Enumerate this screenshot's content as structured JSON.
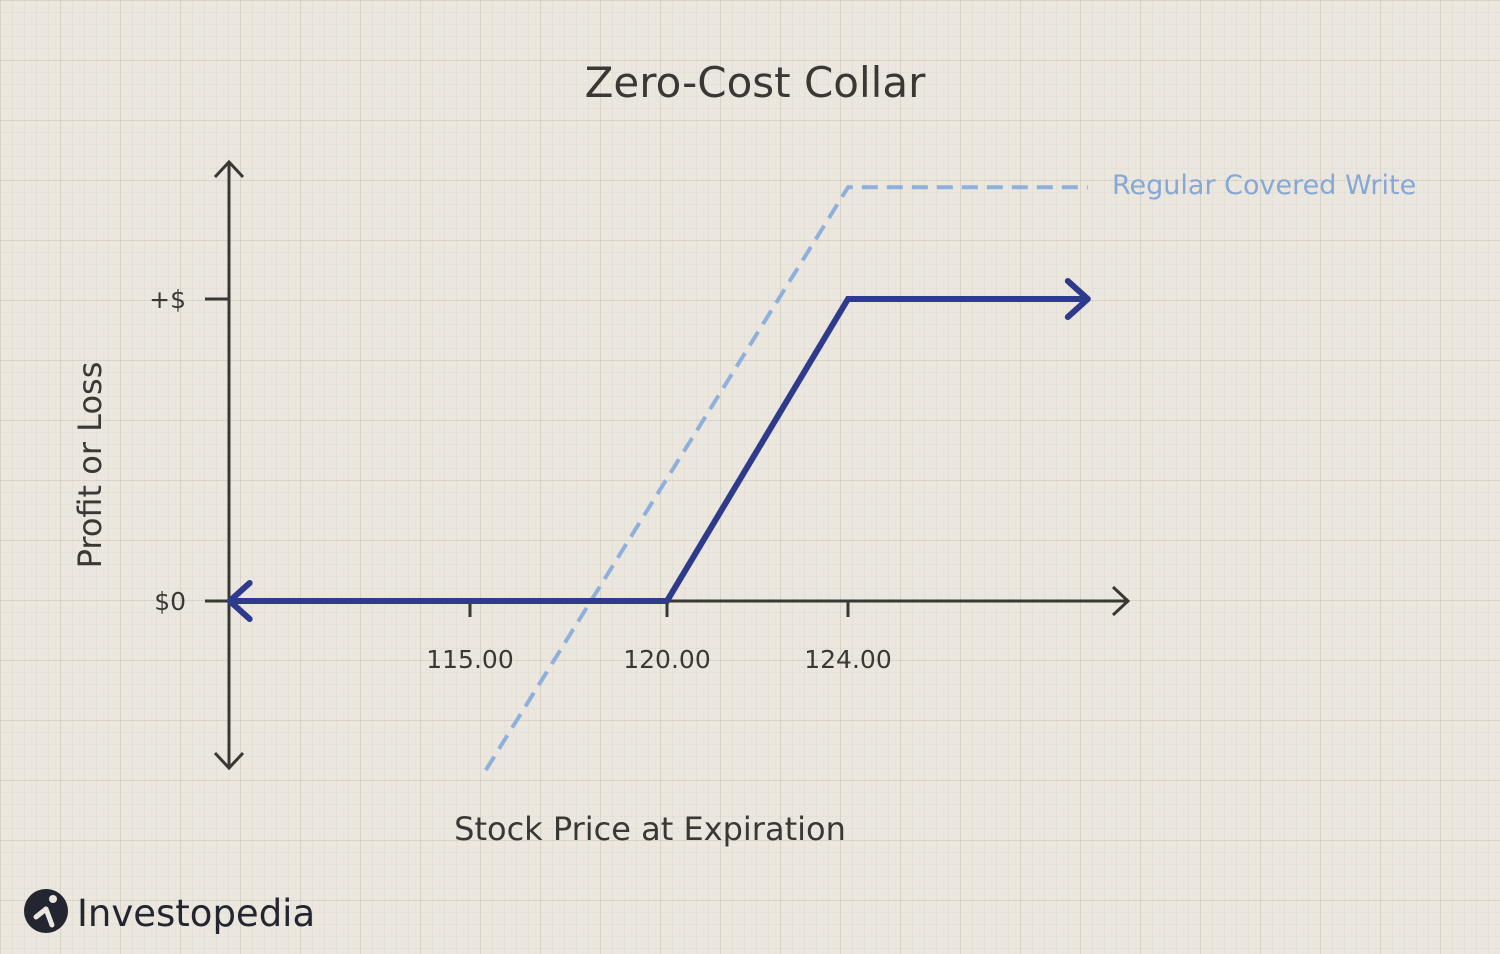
{
  "chart_data": {
    "type": "line",
    "title": "Zero-Cost Collar",
    "xlabel": "Stock Price at Expiration",
    "ylabel": "Profit or Loss",
    "x_ticks": [
      {
        "value": 115,
        "label": "115.00"
      },
      {
        "value": 120,
        "label": "120.00"
      },
      {
        "value": 124,
        "label": "124.00"
      }
    ],
    "y_ticks": [
      {
        "value": 0,
        "label": "$0"
      },
      {
        "value": 1,
        "label": "+$"
      }
    ],
    "series": [
      {
        "style": "solid",
        "color": "#2e3a8c",
        "x": [
          108.9,
          120,
          124,
          129.3
        ],
        "y": [
          0,
          0,
          1,
          1
        ]
      },
      {
        "name": "Regular Covered Write",
        "style": "dashed",
        "color": "#8fb0da",
        "x": [
          115.4,
          124,
          129.3
        ],
        "y": [
          -0.56,
          1.37,
          1.37
        ]
      }
    ]
  },
  "branding": {
    "logo_text": "Investopedia"
  }
}
